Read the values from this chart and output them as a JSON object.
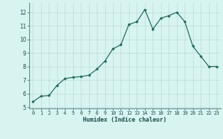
{
  "x": [
    0,
    1,
    2,
    3,
    4,
    5,
    6,
    7,
    8,
    9,
    10,
    11,
    12,
    13,
    14,
    15,
    16,
    17,
    18,
    19,
    20,
    21,
    22,
    23
  ],
  "y": [
    5.4,
    5.8,
    5.85,
    6.6,
    7.1,
    7.2,
    7.25,
    7.35,
    7.8,
    8.4,
    9.3,
    9.6,
    11.1,
    11.3,
    12.2,
    10.75,
    11.55,
    11.75,
    12.0,
    11.3,
    9.5,
    8.75,
    8.0,
    8.0
  ],
  "title": "",
  "xlabel": "Humidex (Indice chaleur)",
  "ylabel": "",
  "xlim": [
    -0.5,
    23.5
  ],
  "ylim": [
    4.9,
    12.7
  ],
  "yticks": [
    5,
    6,
    7,
    8,
    9,
    10,
    11,
    12
  ],
  "xticks": [
    0,
    1,
    2,
    3,
    4,
    5,
    6,
    7,
    8,
    9,
    10,
    11,
    12,
    13,
    14,
    15,
    16,
    17,
    18,
    19,
    20,
    21,
    22,
    23
  ],
  "line_color": "#1a6b5a",
  "marker": "D",
  "marker_size": 1.8,
  "bg_color": "#d8f4f0",
  "grid_color": "#b8d8d8",
  "axis_color": "#3a6a6a",
  "tick_label_color": "#1a4a4a",
  "xlabel_color": "#1a4a4a",
  "line_width": 0.9,
  "spine_color": "#5a8a8a"
}
